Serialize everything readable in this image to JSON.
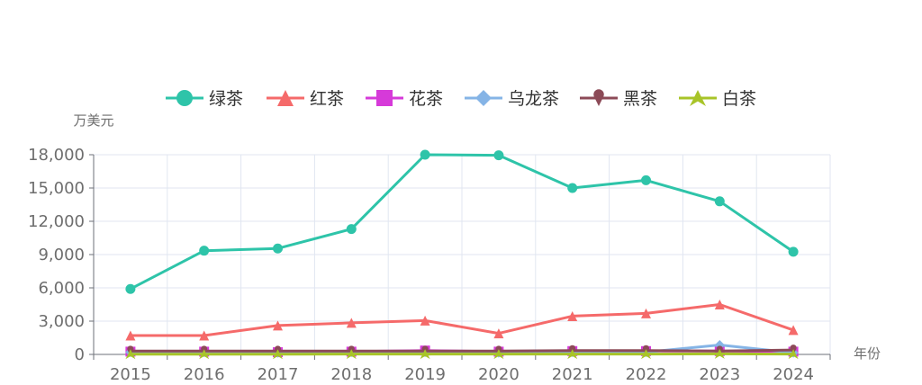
{
  "chart_data": {
    "type": "line",
    "title": "",
    "xlabel": "年份",
    "ylabel": "万美元",
    "x": [
      "2015",
      "2016",
      "2017",
      "2018",
      "2019",
      "2020",
      "2021",
      "2022",
      "2023",
      "2024"
    ],
    "ylim": [
      0,
      18000
    ],
    "yticks": [
      "0",
      "3,000",
      "6,000",
      "9,000",
      "12,000",
      "15,000",
      "18,000"
    ],
    "grid": true,
    "legend_position": "top-center",
    "series": [
      {
        "name": "绿茶",
        "color": "#2ec4a9",
        "marker": "circle",
        "values": [
          5900,
          9350,
          9550,
          11300,
          18000,
          17950,
          15000,
          15700,
          13800,
          9250
        ]
      },
      {
        "name": "红茶",
        "color": "#f56a6a",
        "marker": "triangle",
        "values": [
          1700,
          1700,
          2600,
          2850,
          3050,
          1900,
          3450,
          3700,
          4500,
          2200
        ]
      },
      {
        "name": "花茶",
        "color": "#d63ad9",
        "marker": "square",
        "values": [
          250,
          250,
          200,
          250,
          350,
          250,
          300,
          300,
          300,
          250
        ]
      },
      {
        "name": "乌龙茶",
        "color": "#85b4e6",
        "marker": "diamond",
        "values": [
          200,
          200,
          150,
          200,
          200,
          150,
          200,
          200,
          850,
          150
        ]
      },
      {
        "name": "黑茶",
        "color": "#8c4a57",
        "marker": "pin",
        "values": [
          300,
          300,
          300,
          300,
          300,
          300,
          350,
          350,
          300,
          400
        ]
      },
      {
        "name": "白茶",
        "color": "#a8c428",
        "marker": "arrow",
        "values": [
          20,
          20,
          20,
          30,
          30,
          30,
          30,
          30,
          50,
          30
        ]
      }
    ]
  }
}
